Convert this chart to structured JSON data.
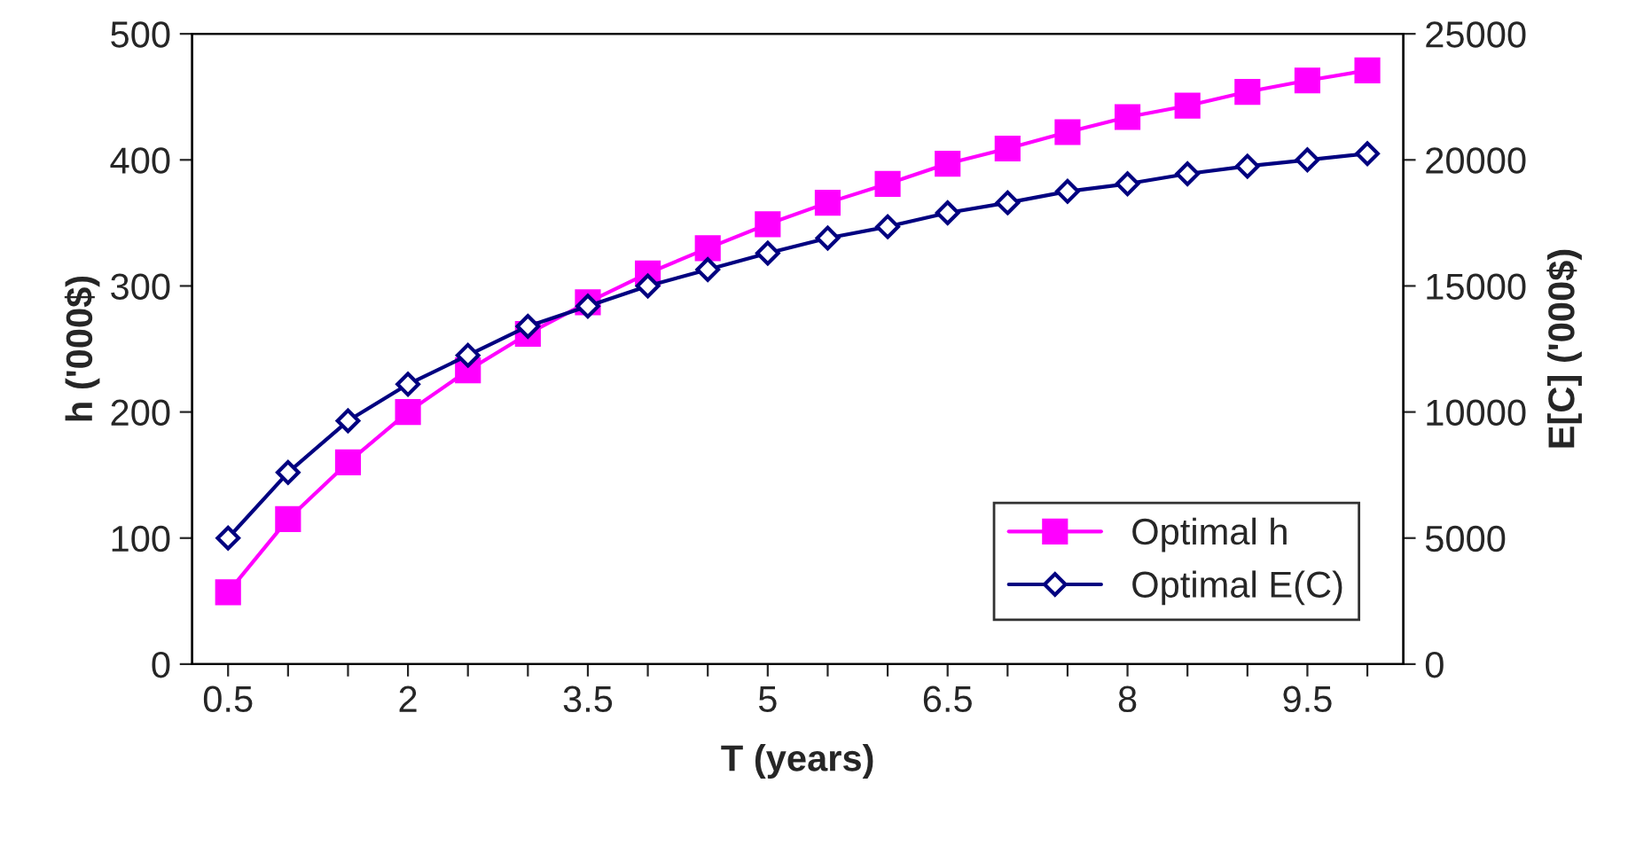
{
  "chart_data": {
    "type": "line",
    "xlabel": "T (years)",
    "ylabel": "h ('000$)",
    "y2label": "E[C] ('000$)",
    "categories": [
      "0.5",
      null,
      null,
      "2",
      null,
      null,
      "3.5",
      null,
      null,
      "5",
      null,
      null,
      "6.5",
      null,
      null,
      "8",
      null,
      null,
      "9.5",
      null
    ],
    "series": [
      {
        "name": "Optimal h",
        "color": "#ff00ff",
        "marker": "square",
        "values": [
          57,
          115,
          160,
          200,
          233,
          262,
          287,
          310,
          330,
          349,
          366,
          381,
          397,
          409,
          422,
          434,
          443,
          454,
          463,
          471
        ]
      },
      {
        "name": "Optimal E(C)",
        "color": "#000080",
        "marker": "diamond",
        "axis": "y2",
        "values": [
          5000,
          7600,
          9650,
          11100,
          12250,
          13400,
          14200,
          15000,
          15650,
          16300,
          16900,
          17350,
          17900,
          18300,
          18750,
          19050,
          19450,
          19750,
          20000,
          20250
        ]
      }
    ],
    "ylim": [
      0,
      500
    ],
    "yticks": [
      0,
      100,
      200,
      300,
      400,
      500
    ],
    "y2lim": [
      0,
      25000
    ],
    "y2ticks": [
      0,
      5000,
      10000,
      15000,
      20000,
      25000
    ],
    "grid": false,
    "legend": "bottom right"
  }
}
